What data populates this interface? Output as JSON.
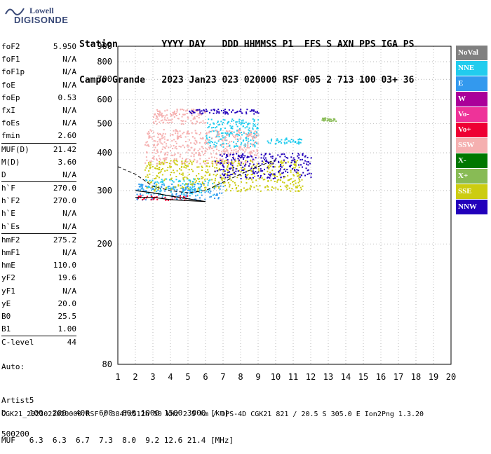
{
  "logo": {
    "line1": "Lowell",
    "line2": "DIGISONDE"
  },
  "header": {
    "row1": "Station        YYYY DAY   DDD HHMMSS P1  FFS S AXN PPS IGA PS",
    "row2": "Campo Grande   2023 Jan23 023 020000 RSF 005 2 713 100 03+ 36"
  },
  "params": [
    {
      "label": "foF2",
      "value": "5.950"
    },
    {
      "label": "foF1",
      "value": "N/A"
    },
    {
      "label": "foF1p",
      "value": "N/A"
    },
    {
      "label": "foE",
      "value": "N/A"
    },
    {
      "label": "foEp",
      "value": "0.53"
    },
    {
      "label": "fxI",
      "value": "N/A"
    },
    {
      "label": "foEs",
      "value": "N/A"
    },
    {
      "label": "fmin",
      "value": "2.60",
      "sep": true
    },
    {
      "label": "MUF(D)",
      "value": "21.42"
    },
    {
      "label": "M(D)",
      "value": "3.60"
    },
    {
      "label": "D",
      "value": "N/A",
      "sep": true
    },
    {
      "label": "h`F",
      "value": "270.0"
    },
    {
      "label": "h`F2",
      "value": "270.0"
    },
    {
      "label": "h`E",
      "value": "N/A"
    },
    {
      "label": "h`Es",
      "value": "N/A",
      "sep": true
    },
    {
      "label": "hmF2",
      "value": "275.2"
    },
    {
      "label": "hmF1",
      "value": "N/A"
    },
    {
      "label": "hmE",
      "value": "110.0"
    },
    {
      "label": "yF2",
      "value": "19.6"
    },
    {
      "label": "yF1",
      "value": "N/A"
    },
    {
      "label": "yE",
      "value": "20.0"
    },
    {
      "label": "B0",
      "value": "25.5"
    },
    {
      "label": "B1",
      "value": "1.00",
      "sep": true
    },
    {
      "label": "C-level",
      "value": "44",
      "sep": true
    }
  ],
  "auto": {
    "line1": "Auto:",
    "line2": "Artist5",
    "line3": "500200"
  },
  "legend": [
    {
      "label": "NoVal",
      "color": "#808080"
    },
    {
      "label": "NNE",
      "color": "#22ccee"
    },
    {
      "label": "E",
      "color": "#3399ee"
    },
    {
      "label": "W",
      "color": "#aa0099"
    },
    {
      "label": "Vo-",
      "color": "#ee3399"
    },
    {
      "label": "Vo+",
      "color": "#ee0033"
    },
    {
      "label": "SSW",
      "color": "#f5b0b0"
    },
    {
      "label": "X-",
      "color": "#007700"
    },
    {
      "label": "X+",
      "color": "#88bb55"
    },
    {
      "label": "SSE",
      "color": "#cccc11"
    },
    {
      "label": "NNW",
      "color": "#2200bb"
    }
  ],
  "chart_data": {
    "type": "scatter",
    "xlabel": "",
    "ylabel": "",
    "xlim": [
      1,
      20
    ],
    "ylim": [
      80,
      900
    ],
    "x_ticks": [
      1,
      2,
      3,
      4,
      5,
      6,
      7,
      8,
      9,
      10,
      11,
      12,
      13,
      14,
      15,
      16,
      17,
      18,
      19,
      20
    ],
    "y_ticks": [
      80,
      200,
      300,
      400,
      500,
      600,
      700,
      800,
      900
    ],
    "log_y": true,
    "grid": "dotted",
    "series": [
      {
        "name": "NNE",
        "clusters": [
          [
            2.2,
            6.5,
            290,
            330
          ],
          [
            6,
            9,
            420,
            520
          ],
          [
            9.5,
            11.5,
            430,
            450
          ]
        ]
      },
      {
        "name": "E",
        "clusters": [
          [
            2,
            7,
            280,
            320
          ]
        ]
      },
      {
        "name": "SSW",
        "clusters": [
          [
            2.5,
            9,
            370,
            480
          ],
          [
            3,
            6,
            500,
            560
          ]
        ]
      },
      {
        "name": "SSE",
        "clusters": [
          [
            2.5,
            11.5,
            300,
            380
          ]
        ]
      },
      {
        "name": "NNW",
        "clusters": [
          [
            6.5,
            12,
            330,
            400
          ],
          [
            5,
            9,
            540,
            560
          ]
        ]
      },
      {
        "name": "Vo+",
        "clusters": [
          [
            2,
            5,
            280,
            290
          ]
        ]
      },
      {
        "name": "X+",
        "clusters": [
          [
            12.6,
            13.5,
            510,
            525
          ]
        ]
      }
    ],
    "profile_solid": [
      [
        2,
        285
      ],
      [
        3,
        285
      ],
      [
        4,
        280
      ],
      [
        5,
        278
      ],
      [
        6,
        276
      ],
      [
        5,
        282
      ],
      [
        4,
        288
      ],
      [
        3,
        295
      ],
      [
        2,
        300
      ]
    ],
    "profile_dashed": [
      [
        1,
        360
      ],
      [
        2,
        340
      ],
      [
        3,
        310
      ],
      [
        4,
        300
      ],
      [
        5,
        295
      ],
      [
        6,
        300
      ],
      [
        7,
        320
      ],
      [
        8,
        340
      ],
      [
        9,
        360
      ],
      [
        10,
        380
      ]
    ]
  },
  "bottom": {
    "row1": "D     100  200  400  600  800 1000 1500 3000 [km]",
    "row2": "MUF   6.3  6.3  6.7  7.3  8.0  9.2 12.6 21.4 [MHz]"
  },
  "footer": "CGK21_2023023020000.RSF / 384fx512h 50 kHz 2.5 km / DPS-4D CGK21 821 / 20.5 S 305.0 E Ion2Png 1.3.20"
}
